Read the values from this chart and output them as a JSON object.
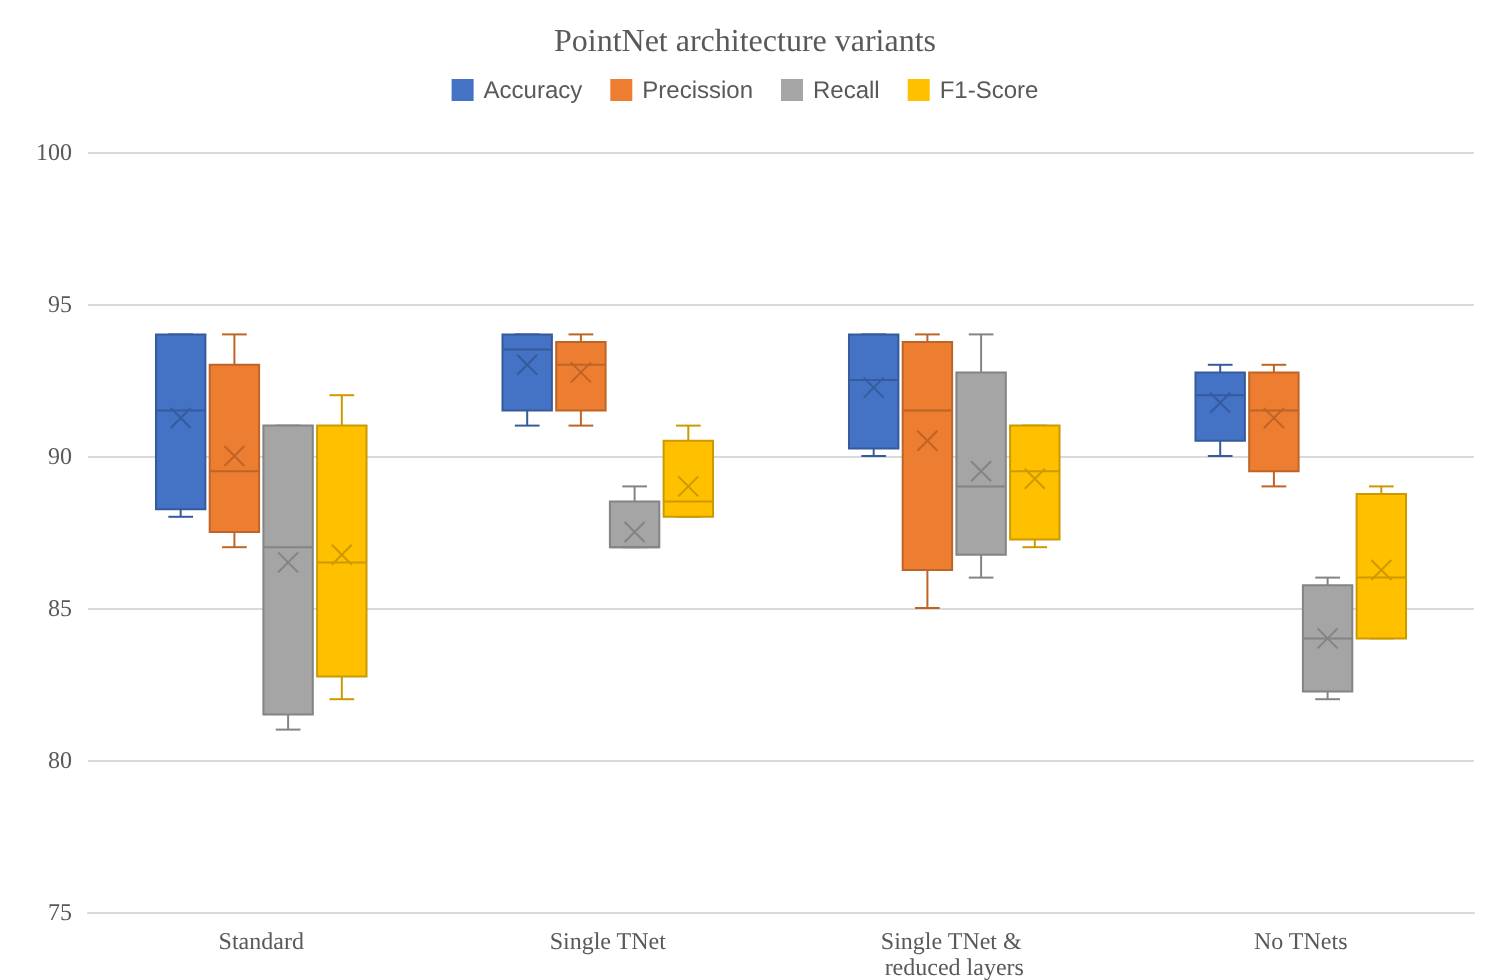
{
  "chart_data": {
    "type": "box",
    "title": "PointNet architecture variants",
    "categories": [
      "Standard",
      "Single TNet",
      "Single TNet & reduced layers",
      "No TNets"
    ],
    "series": [
      {
        "name": "Accuracy",
        "color": "#4472c4",
        "boxes": [
          {
            "low": 88,
            "q1": 88.25,
            "median": 91.5,
            "q3": 94,
            "high": 94,
            "mean": 91.25
          },
          {
            "low": 91,
            "q1": 91.5,
            "median": 93.5,
            "q3": 94,
            "high": 94,
            "mean": 93
          },
          {
            "low": 90,
            "q1": 90.25,
            "median": 92.5,
            "q3": 94,
            "high": 94,
            "mean": 92.25
          },
          {
            "low": 90,
            "q1": 90.5,
            "median": 92,
            "q3": 92.75,
            "high": 93,
            "mean": 91.75
          }
        ]
      },
      {
        "name": "Precission",
        "color": "#ed7d31",
        "boxes": [
          {
            "low": 87,
            "q1": 87.5,
            "median": 89.5,
            "q3": 93,
            "high": 94,
            "mean": 90
          },
          {
            "low": 91,
            "q1": 91.5,
            "median": 93,
            "q3": 93.75,
            "high": 94,
            "mean": 92.75
          },
          {
            "low": 85,
            "q1": 86.25,
            "median": 91.5,
            "q3": 93.75,
            "high": 94,
            "mean": 90.5
          },
          {
            "low": 89,
            "q1": 89.5,
            "median": 91.5,
            "q3": 92.75,
            "high": 93,
            "mean": 91.25
          }
        ]
      },
      {
        "name": "Recall",
        "color": "#a5a5a5",
        "boxes": [
          {
            "low": 81,
            "q1": 81.5,
            "median": 87,
            "q3": 91,
            "high": 91,
            "mean": 86.5
          },
          {
            "low": 87,
            "q1": 87,
            "median": 87,
            "q3": 88.5,
            "high": 89,
            "mean": 87.5
          },
          {
            "low": 86,
            "q1": 86.75,
            "median": 89,
            "q3": 92.75,
            "high": 94,
            "mean": 89.5
          },
          {
            "low": 82,
            "q1": 82.25,
            "median": 84,
            "q3": 85.75,
            "high": 86,
            "mean": 84
          }
        ]
      },
      {
        "name": "F1-Score",
        "color": "#ffc000",
        "boxes": [
          {
            "low": 82,
            "q1": 82.75,
            "median": 86.5,
            "q3": 91,
            "high": 92,
            "mean": 86.75
          },
          {
            "low": 88,
            "q1": 88,
            "median": 88.5,
            "q3": 90.5,
            "high": 91,
            "mean": 89
          },
          {
            "low": 87,
            "q1": 87.25,
            "median": 89.5,
            "q3": 91,
            "high": 91,
            "mean": 89.25
          },
          {
            "low": 84,
            "q1": 84,
            "median": 86,
            "q3": 88.75,
            "high": 89,
            "mean": 86.25
          }
        ]
      }
    ],
    "ylim": [
      75,
      100
    ],
    "yticks": [
      75,
      80,
      85,
      90,
      95,
      100
    ],
    "grid": "y",
    "legend": "top"
  }
}
